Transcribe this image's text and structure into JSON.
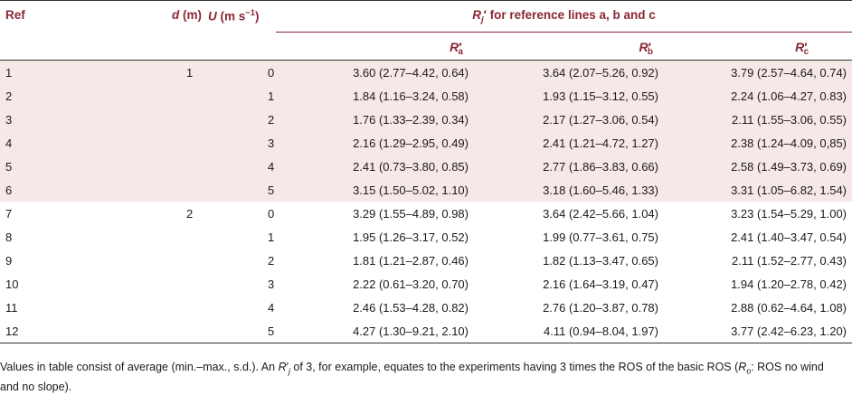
{
  "headers": {
    "ref": "Ref",
    "d_symbol": "d",
    "d_unit": "(m)",
    "u_symbol": "U",
    "u_unit": "(m s",
    "u_exp": "−1",
    "u_close": ")",
    "rj_symbol": "R",
    "rj_sub": "j",
    "rj_prime": "′",
    "rj_text": "for reference lines a, b and c",
    "ra": {
      "symbol": "R",
      "sub": "a",
      "prime": "′"
    },
    "rb": {
      "symbol": "R",
      "sub": "b",
      "prime": "′"
    },
    "rc": {
      "symbol": "R",
      "sub": "c",
      "prime": "′"
    }
  },
  "rows": [
    {
      "ref": "1",
      "d": "1",
      "u": "0",
      "ra": "3.60 (2.77–4.42, 0.64)",
      "rb": "3.64 (2.07–5.26, 0.92)",
      "rc": "3.79 (2.57–4.64, 0.74)"
    },
    {
      "ref": "2",
      "d": "",
      "u": "1",
      "ra": "1.84 (1.16–3.24, 0.58)",
      "rb": "1.93 (1.15–3.12, 0.55)",
      "rc": "2.24 (1.06–4.27, 0.83)"
    },
    {
      "ref": "3",
      "d": "",
      "u": "2",
      "ra": "1.76 (1.33–2.39, 0.34)",
      "rb": "2.17 (1.27–3.06, 0.54)",
      "rc": "2.11 (1.55–3.06, 0.55)"
    },
    {
      "ref": "4",
      "d": "",
      "u": "3",
      "ra": "2.16 (1.29–2.95, 0.49)",
      "rb": "2.41 (1.21–4.72, 1.27)",
      "rc": "2.38 (1.24–4.09, 0,85)"
    },
    {
      "ref": "5",
      "d": "",
      "u": "4",
      "ra": "2.41 (0.73–3.80, 0.85)",
      "rb": "2.77 (1.86–3.83, 0.66)",
      "rc": "2.58 (1.49–3.73, 0.69)"
    },
    {
      "ref": "6",
      "d": "",
      "u": "5",
      "ra": "3.15 (1.50–5.02, 1.10)",
      "rb": "3.18 (1.60–5.46, 1.33)",
      "rc": "3.31 (1.05–6.82, 1.54)"
    },
    {
      "ref": "7",
      "d": "2",
      "u": "0",
      "ra": "3.29 (1.55–4.89, 0.98)",
      "rb": "3.64 (2.42–5.66, 1.04)",
      "rc": "3.23 (1.54–5.29, 1.00)"
    },
    {
      "ref": "8",
      "d": "",
      "u": "1",
      "ra": "1.95 (1.26–3.17, 0.52)",
      "rb": "1.99 (0.77–3.61, 0.75)",
      "rc": "2.41 (1.40–3.47, 0.54)"
    },
    {
      "ref": "9",
      "d": "",
      "u": "2",
      "ra": "1.81 (1.21–2.87, 0.46)",
      "rb": "1.82 (1.13–3.47, 0.65)",
      "rc": "2.11 (1.52–2.77, 0.43)"
    },
    {
      "ref": "10",
      "d": "",
      "u": "3",
      "ra": "2.22 (0.61–3.20, 0.70)",
      "rb": "2.16 (1.64–3.19, 0.47)",
      "rc": "1.94 (1.20–2.78, 0.42)"
    },
    {
      "ref": "11",
      "d": "",
      "u": "4",
      "ra": "2.46 (1.53–4.28, 0.82)",
      "rb": "2.76 (1.20–3.87, 0.78)",
      "rc": "2.88 (0.62–4.64, 1.08)"
    },
    {
      "ref": "12",
      "d": "",
      "u": "5",
      "ra": "4.27 (1.30–9.21, 2.10)",
      "rb": "4.11 (0.94–8.04, 1.97)",
      "rc": "3.77 (2.42–6.23, 1.20)"
    }
  ],
  "note": {
    "part1": "Values in table consist of average (min.–max., s.d.). An ",
    "r_symbol": "R",
    "r_sub": "j",
    "r_prime": "′",
    "part2": " of 3, for example, equates to the experiments having 3 times the ROS of the basic ROS (",
    "r0_symbol": "R",
    "r0_sub": "o",
    "part3": ": ROS no wind and no slope)."
  },
  "colors": {
    "header_text": "#8b2635",
    "shade": "#f5e8e6",
    "rule": "#333333"
  }
}
